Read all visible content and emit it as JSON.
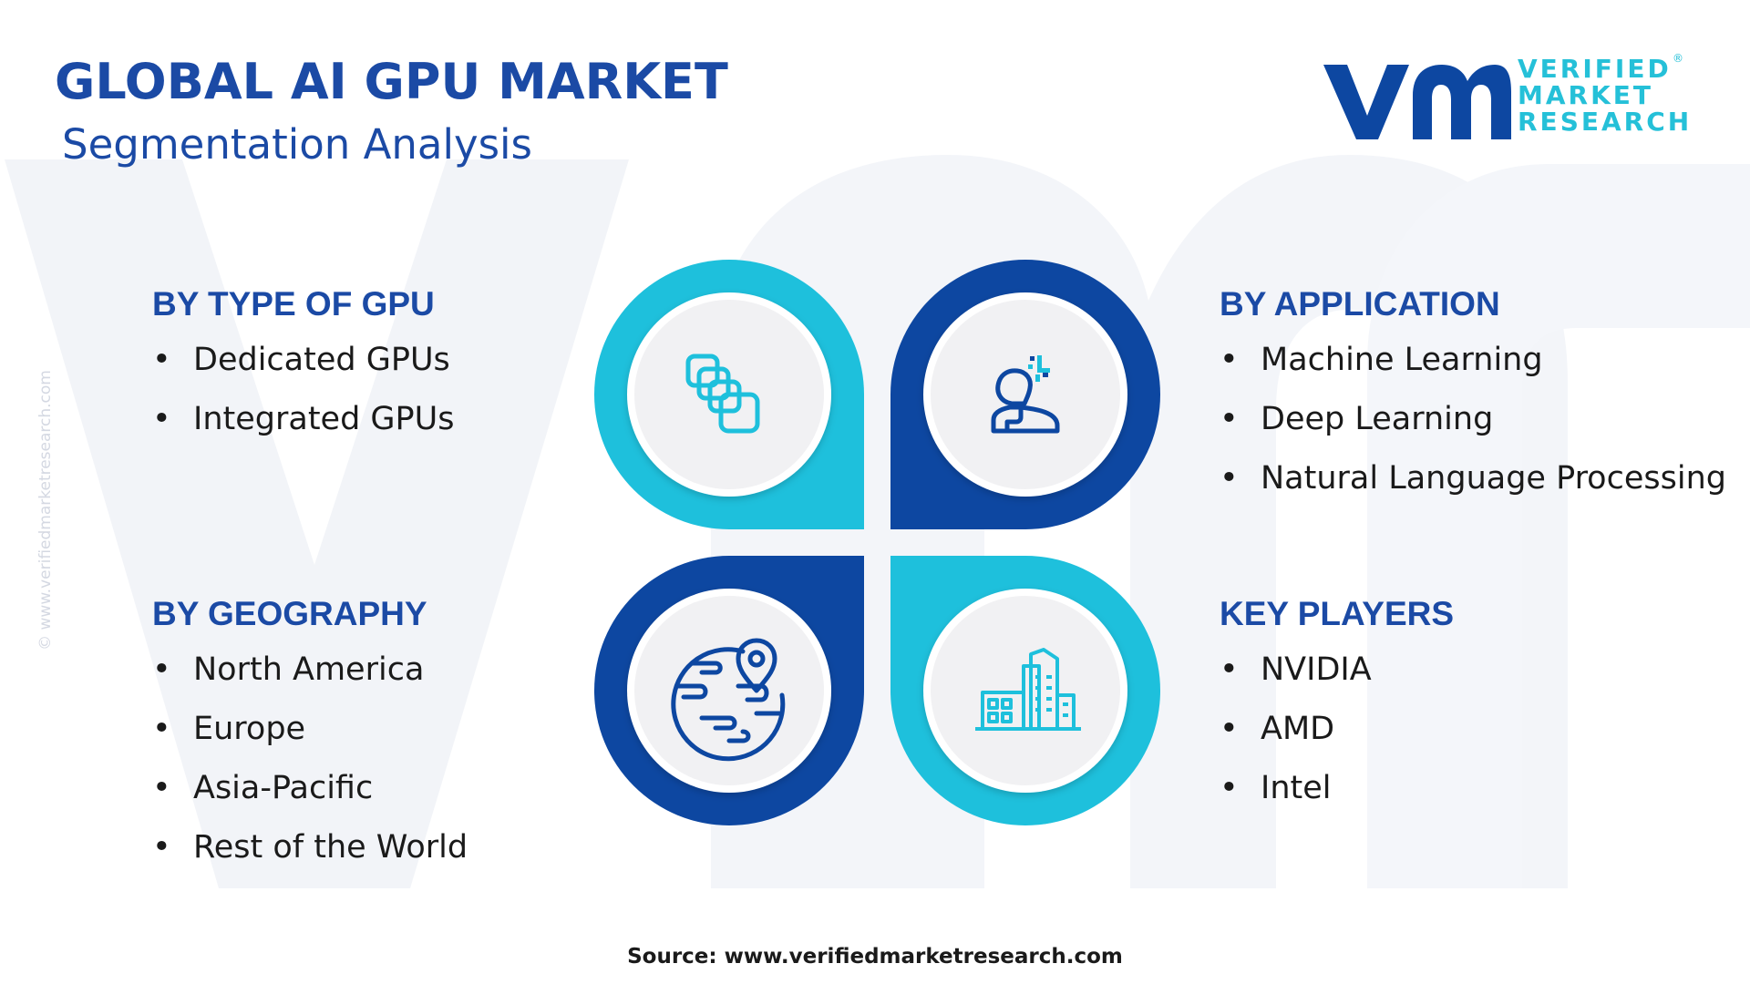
{
  "header": {
    "title": "GLOBAL AI GPU MARKET",
    "subtitle": "Segmentation Analysis"
  },
  "logo": {
    "line1": "VERIFIED",
    "line2": "MARKET",
    "line3": "RESEARCH",
    "registered": "®"
  },
  "watermark_side": "© www.verifiedmarketresearch.com",
  "segments": {
    "type_of_gpu": {
      "heading": "BY TYPE OF GPU",
      "items": [
        "Dedicated GPUs",
        "Integrated GPUs"
      ]
    },
    "application": {
      "heading": "BY APPLICATION",
      "items": [
        "Machine Learning",
        "Deep Learning",
        "Natural Language Processing"
      ]
    },
    "geography": {
      "heading": "BY GEOGRAPHY",
      "items": [
        "North America",
        "Europe",
        "Asia-Pacific",
        "Rest of the World"
      ]
    },
    "key_players": {
      "heading": "KEY PLAYERS",
      "items": [
        "NVIDIA",
        "AMD",
        "Intel"
      ]
    }
  },
  "bullet_char": "•",
  "source": "Source: www.verifiedmarketresearch.com",
  "icons": {
    "top_left": "gpu-stack-icon",
    "top_right": "ai-person-icon",
    "bottom_left": "globe-location-icon",
    "bottom_right": "buildings-icon"
  },
  "colors": {
    "dark_blue": "#0d47a1",
    "teal": "#1ec0dc",
    "title_blue": "#1b4aa5",
    "text": "#1a1a1a",
    "inner_circle": "#f1f1f3",
    "watermark": "#f2f4f8"
  }
}
